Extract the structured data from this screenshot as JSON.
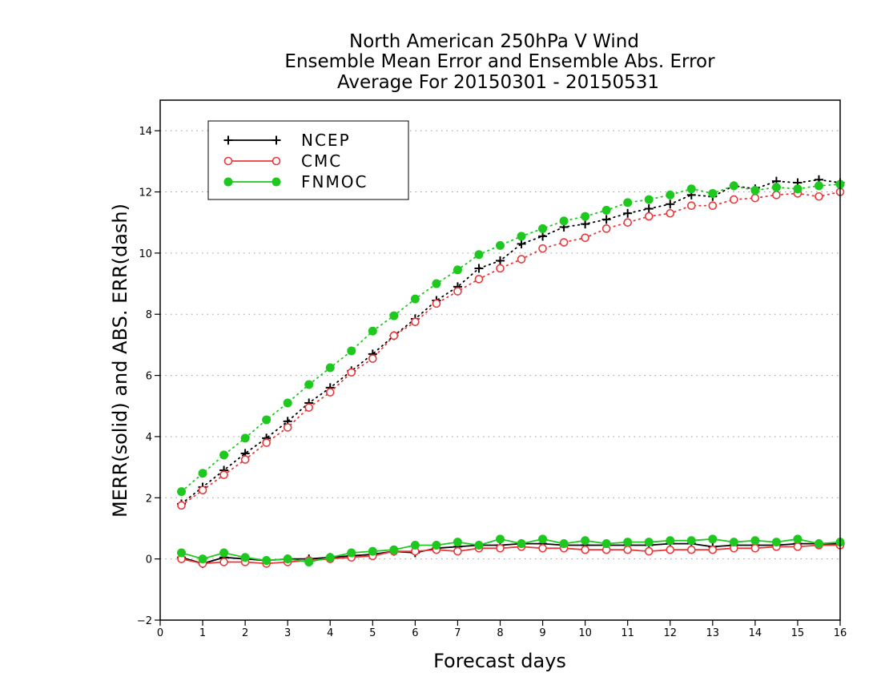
{
  "chart_data": {
    "type": "line",
    "title": [
      "North American 250hPa V Wind",
      "Ensemble Mean Error and Ensemble Abs. Error",
      "Average For 20150301 - 20150531"
    ],
    "xlabel": "Forecast days",
    "ylabel": "MERR(solid) and ABS. ERR(dash)",
    "xlim": [
      0,
      16
    ],
    "ylim": [
      -2,
      15
    ],
    "xticks": [
      0,
      1,
      2,
      3,
      4,
      5,
      6,
      7,
      8,
      9,
      10,
      11,
      12,
      13,
      14,
      15,
      16
    ],
    "yticks": [
      -2,
      0,
      2,
      4,
      6,
      8,
      10,
      12,
      14
    ],
    "grid": "horizontal dotted",
    "legend_position": "top-left",
    "x": [
      0.5,
      1,
      1.5,
      2,
      2.5,
      3,
      3.5,
      4,
      4.5,
      5,
      5.5,
      6,
      6.5,
      7,
      7.5,
      8,
      8.5,
      9,
      9.5,
      10,
      10.5,
      11,
      11.5,
      12,
      12.5,
      13,
      13.5,
      14,
      14.5,
      15,
      15.5,
      16
    ],
    "series": [
      {
        "name": "NCEP",
        "color": "#000000",
        "marker": "plus",
        "merr": [
          0.05,
          -0.15,
          0.05,
          0.0,
          -0.05,
          0.0,
          0.0,
          0.05,
          0.1,
          0.15,
          0.25,
          0.2,
          0.35,
          0.4,
          0.45,
          0.45,
          0.5,
          0.5,
          0.45,
          0.45,
          0.45,
          0.45,
          0.45,
          0.5,
          0.5,
          0.4,
          0.45,
          0.45,
          0.45,
          0.5,
          0.5,
          0.5
        ],
        "abs_err": [
          1.8,
          2.35,
          2.9,
          3.45,
          3.95,
          4.5,
          5.1,
          5.6,
          6.15,
          6.7,
          7.3,
          7.85,
          8.45,
          8.9,
          9.5,
          9.75,
          10.3,
          10.55,
          10.85,
          10.95,
          11.1,
          11.3,
          11.45,
          11.6,
          11.9,
          11.85,
          12.2,
          12.1,
          12.35,
          12.3,
          12.4,
          12.3
        ]
      },
      {
        "name": "CMC",
        "color": "#e8393b",
        "marker": "open-circle",
        "merr": [
          0.0,
          -0.15,
          -0.1,
          -0.1,
          -0.15,
          -0.1,
          -0.05,
          0.0,
          0.05,
          0.1,
          0.25,
          0.25,
          0.3,
          0.25,
          0.35,
          0.35,
          0.4,
          0.35,
          0.35,
          0.3,
          0.3,
          0.3,
          0.25,
          0.3,
          0.3,
          0.3,
          0.35,
          0.35,
          0.4,
          0.4,
          0.45,
          0.45
        ],
        "abs_err": [
          1.75,
          2.25,
          2.75,
          3.25,
          3.8,
          4.3,
          4.95,
          5.45,
          6.1,
          6.55,
          7.3,
          7.75,
          8.35,
          8.75,
          9.15,
          9.5,
          9.8,
          10.15,
          10.35,
          10.5,
          10.8,
          11.0,
          11.2,
          11.3,
          11.55,
          11.55,
          11.75,
          11.8,
          11.9,
          11.95,
          11.85,
          12.0
        ]
      },
      {
        "name": "FNMOC",
        "color": "#1ec81e",
        "marker": "filled-circle",
        "merr": [
          0.2,
          0.0,
          0.2,
          0.05,
          -0.05,
          0.0,
          -0.1,
          0.05,
          0.2,
          0.25,
          0.3,
          0.45,
          0.45,
          0.55,
          0.45,
          0.65,
          0.5,
          0.65,
          0.5,
          0.6,
          0.5,
          0.55,
          0.55,
          0.6,
          0.6,
          0.65,
          0.55,
          0.6,
          0.55,
          0.65,
          0.5,
          0.55
        ],
        "abs_err": [
          2.2,
          2.8,
          3.4,
          3.95,
          4.55,
          5.1,
          5.7,
          6.25,
          6.8,
          7.45,
          7.95,
          8.5,
          9.0,
          9.45,
          9.95,
          10.25,
          10.55,
          10.8,
          11.05,
          11.2,
          11.4,
          11.65,
          11.75,
          11.9,
          12.1,
          11.95,
          12.2,
          12.05,
          12.15,
          12.1,
          12.2,
          12.25
        ]
      }
    ]
  }
}
